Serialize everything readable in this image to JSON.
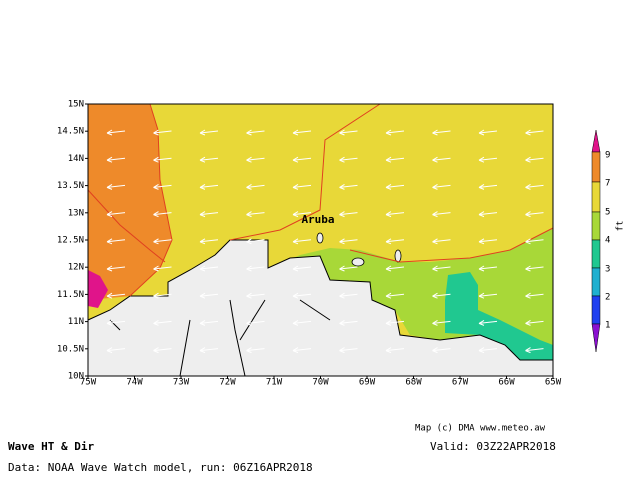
{
  "map": {
    "title": "Wave HT & Dir",
    "valid": "Valid: 03Z22APR2018",
    "credit": "Map (c) DMA www.meteo.aw",
    "source": "Data: NOAA Wave Watch model, run: 06Z16APR2018",
    "place_label": "Aruba",
    "lat_labels": [
      "15N",
      "14.5N",
      "14N",
      "13.5N",
      "13N",
      "12.5N",
      "12N",
      "11.5N",
      "11N",
      "10.5N",
      "10N"
    ],
    "lon_labels": [
      "75W",
      "74W",
      "73W",
      "72W",
      "71W",
      "70W",
      "69W",
      "68W",
      "67W",
      "66W",
      "65W"
    ],
    "colorbar": {
      "unit": "ft",
      "labels": [
        "9",
        "7",
        "5",
        "4",
        "3",
        "2",
        "1"
      ]
    }
  }
}
